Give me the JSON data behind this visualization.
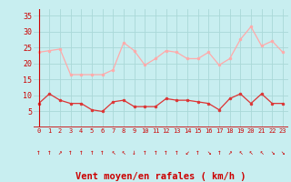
{
  "x": [
    0,
    1,
    2,
    3,
    4,
    5,
    6,
    7,
    8,
    9,
    10,
    11,
    12,
    13,
    14,
    15,
    16,
    17,
    18,
    19,
    20,
    21,
    22,
    23
  ],
  "wind_avg": [
    7.5,
    10.5,
    8.5,
    7.5,
    7.5,
    5.5,
    5.0,
    8.0,
    8.5,
    6.5,
    6.5,
    6.5,
    9.0,
    8.5,
    8.5,
    8.0,
    7.5,
    5.5,
    9.0,
    10.5,
    7.5,
    10.5,
    7.5,
    7.5
  ],
  "wind_gust": [
    23.5,
    24.0,
    24.5,
    16.5,
    16.5,
    16.5,
    16.5,
    18.0,
    26.5,
    24.0,
    19.5,
    21.5,
    24.0,
    23.5,
    21.5,
    21.5,
    23.5,
    19.5,
    21.5,
    27.5,
    31.5,
    25.5,
    27.0,
    23.5
  ],
  "wind_dir_arrows": [
    "↑",
    "↑",
    "↗",
    "↑",
    "↑",
    "↑",
    "↑",
    "↖",
    "↖",
    "↓",
    "↑",
    "↑",
    "↑",
    "↑",
    "↙",
    "↑",
    "↘",
    "↑",
    "↗",
    "↖",
    "↖",
    "↖",
    "↘",
    "↘"
  ],
  "avg_color": "#dd3333",
  "gust_color": "#ffaaaa",
  "bg_color": "#c8eef0",
  "grid_color": "#aad8d8",
  "axis_color": "#cc0000",
  "text_color": "#cc0000",
  "xlabel": "Vent moyen/en rafales ( km/h )",
  "ylabel_ticks": [
    5,
    10,
    15,
    20,
    25,
    30,
    35
  ],
  "ylim": [
    0,
    37
  ],
  "xlim": [
    -0.5,
    23.5
  ]
}
